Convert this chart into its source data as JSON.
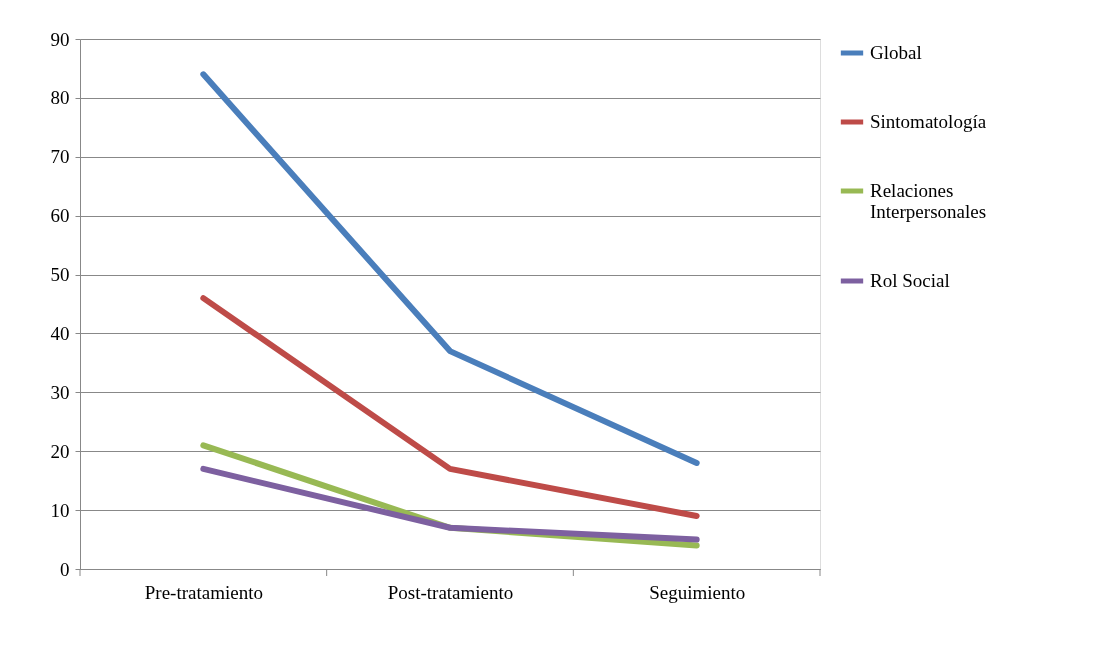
{
  "chart_data": {
    "type": "line",
    "categories": [
      "Pre-tratamiento",
      "Post-tratamiento",
      "Seguimiento"
    ],
    "series": [
      {
        "name": "Global",
        "color": "#4a7ebb",
        "values": [
          84,
          37,
          18
        ]
      },
      {
        "name": "Sintomatología",
        "color": "#be4b48",
        "values": [
          46,
          17,
          9
        ]
      },
      {
        "name": "Relaciones Interpersonales",
        "color": "#98b954",
        "values": [
          21,
          7,
          4
        ]
      },
      {
        "name": "Rol Social",
        "color": "#7d60a0",
        "values": [
          17,
          7,
          5
        ]
      }
    ],
    "ylim": [
      0,
      90
    ],
    "yticks": [
      0,
      10,
      20,
      30,
      40,
      50,
      60,
      70,
      80,
      90
    ],
    "grid": "y",
    "legend": "right",
    "marker": "none",
    "line_style": "solid"
  }
}
